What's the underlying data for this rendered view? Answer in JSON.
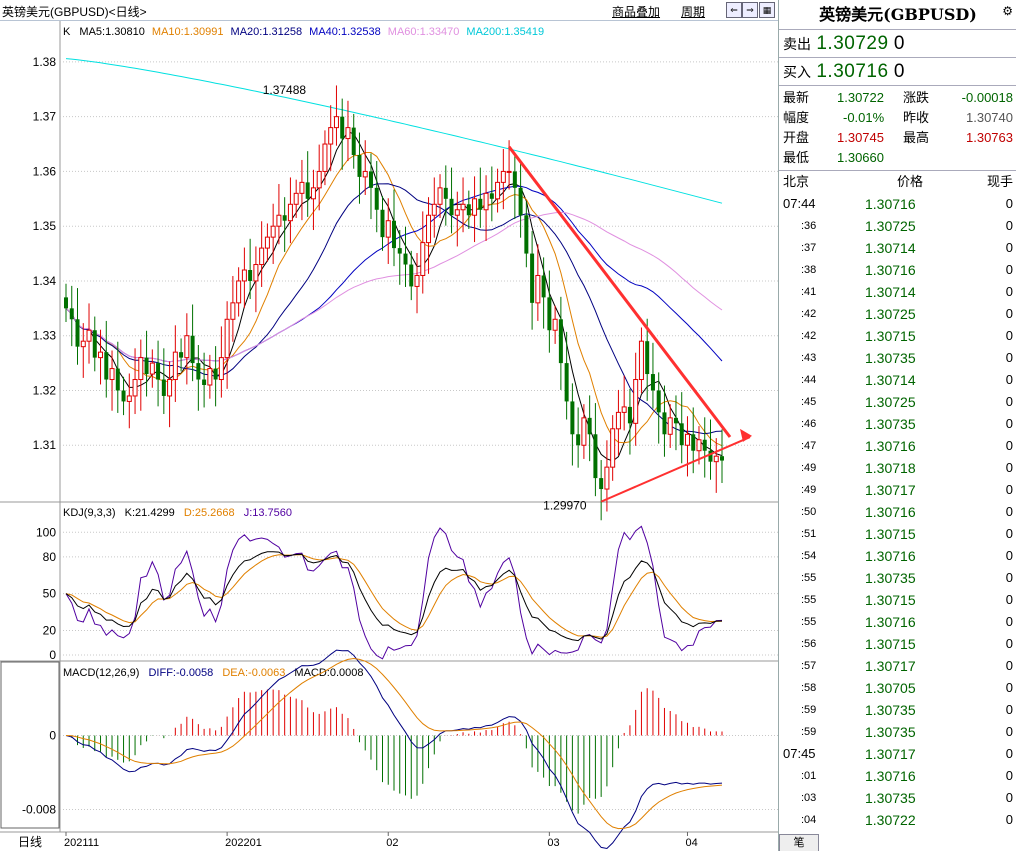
{
  "window": {
    "title": "英镑美元(GBPUSD)<日线>"
  },
  "toolbar": {
    "menu_overlay": "商品叠加",
    "menu_period": "周期",
    "btn_left": "⇐",
    "btn_right": "⇒",
    "btn_grid": "▦"
  },
  "main_chart": {
    "ma_legend": {
      "k": "K",
      "ma5": "MA5:1.30810",
      "ma10": "MA10:1.30991",
      "ma20": "MA20:1.31258",
      "ma40": "MA40:1.32538",
      "ma60": "MA60:1.33470",
      "ma200": "MA200:1.35419"
    },
    "y_ticks": [
      "1.38",
      "1.37",
      "1.36",
      "1.35",
      "1.34",
      "1.33",
      "1.32",
      "1.31"
    ],
    "annot_high": "1.37488",
    "annot_low": "1.29970"
  },
  "kdj": {
    "legend": "KDJ(9,3,3)",
    "k": "K:21.4299",
    "d": "D:25.2668",
    "j": "J:13.7560",
    "y_ticks": [
      "100",
      "80",
      "50",
      "20",
      "0"
    ]
  },
  "macd": {
    "legend": "MACD(12,26,9)",
    "diff": "DIFF:-0.0058",
    "dea": "DEA:-0.0063",
    "macd": "MACD:0.0008",
    "y_ticks": [
      "0",
      "-0.008"
    ]
  },
  "x_axis": {
    "label": "日线",
    "ticks": [
      "202111",
      "202201",
      "02",
      "03",
      "04"
    ]
  },
  "colors": {
    "ma5": "#000000",
    "ma10": "#e08000",
    "ma20": "#000080",
    "ma40": "#0000c0",
    "ma60": "#e090e0",
    "ma200": "#00e0e0",
    "up": "#e00000",
    "down": "#007000",
    "trend": "#ff3030"
  },
  "right_panel": {
    "title": "英镑美元(GBPUSD)",
    "gear": "⚙",
    "sell_label": "卖出",
    "sell_price": "1.30729",
    "sell_qty": "0",
    "buy_label": "买入",
    "buy_price": "1.30716",
    "buy_qty": "0",
    "stats": {
      "latest_label": "最新",
      "latest": "1.30722",
      "change_label": "涨跌",
      "change": "-0.00018",
      "pct_label": "幅度",
      "pct": "-0.01%",
      "prev_label": "昨收",
      "prev": "1.30740",
      "open_label": "开盘",
      "open": "1.30745",
      "high_label": "最高",
      "high": "1.30763",
      "low_label": "最低",
      "low": "1.30660"
    },
    "trades_head": {
      "time": "北京",
      "price": "价格",
      "vol": "现手"
    },
    "trades": [
      {
        "time": "07:44",
        "price": "1.30716",
        "vol": "0"
      },
      {
        "time": ":36",
        "price": "1.30725",
        "vol": "0"
      },
      {
        "time": ":37",
        "price": "1.30714",
        "vol": "0"
      },
      {
        "time": ":38",
        "price": "1.30716",
        "vol": "0"
      },
      {
        "time": ":41",
        "price": "1.30714",
        "vol": "0"
      },
      {
        "time": ":42",
        "price": "1.30725",
        "vol": "0"
      },
      {
        "time": ":42",
        "price": "1.30715",
        "vol": "0"
      },
      {
        "time": ":43",
        "price": "1.30735",
        "vol": "0"
      },
      {
        "time": ":44",
        "price": "1.30714",
        "vol": "0"
      },
      {
        "time": ":45",
        "price": "1.30725",
        "vol": "0"
      },
      {
        "time": ":46",
        "price": "1.30735",
        "vol": "0"
      },
      {
        "time": ":47",
        "price": "1.30716",
        "vol": "0"
      },
      {
        "time": ":49",
        "price": "1.30718",
        "vol": "0"
      },
      {
        "time": ":49",
        "price": "1.30717",
        "vol": "0"
      },
      {
        "time": ":50",
        "price": "1.30716",
        "vol": "0"
      },
      {
        "time": ":51",
        "price": "1.30715",
        "vol": "0"
      },
      {
        "time": ":54",
        "price": "1.30716",
        "vol": "0"
      },
      {
        "time": ":55",
        "price": "1.30735",
        "vol": "0"
      },
      {
        "time": ":55",
        "price": "1.30715",
        "vol": "0"
      },
      {
        "time": ":55",
        "price": "1.30716",
        "vol": "0"
      },
      {
        "time": ":56",
        "price": "1.30715",
        "vol": "0"
      },
      {
        "time": ":57",
        "price": "1.30717",
        "vol": "0"
      },
      {
        "time": ":58",
        "price": "1.30705",
        "vol": "0"
      },
      {
        "time": ":59",
        "price": "1.30735",
        "vol": "0"
      },
      {
        "time": ":59",
        "price": "1.30735",
        "vol": "0"
      },
      {
        "time": "07:45",
        "price": "1.30717",
        "vol": "0"
      },
      {
        "time": ":01",
        "price": "1.30716",
        "vol": "0"
      },
      {
        "time": ":03",
        "price": "1.30735",
        "vol": "0"
      },
      {
        "time": ":04",
        "price": "1.30722",
        "vol": "0"
      }
    ],
    "bottom_tab": "笔"
  },
  "chart_data": [
    {
      "type": "candlestick",
      "title": "英镑美元(GBPUSD)",
      "y_range": [
        1.3,
        1.384
      ],
      "series": [
        {
          "name": "MA5",
          "value": 1.3081
        },
        {
          "name": "MA10",
          "value": 1.30991
        },
        {
          "name": "MA20",
          "value": 1.31258
        },
        {
          "name": "MA40",
          "value": 1.32538
        },
        {
          "name": "MA60",
          "value": 1.3347
        },
        {
          "name": "MA200",
          "value": 1.35419
        }
      ],
      "annotations": [
        {
          "label": "1.37488",
          "value": 1.37488
        },
        {
          "label": "1.29970",
          "value": 1.2997
        }
      ],
      "close": [
        1.335,
        1.333,
        1.328,
        1.329,
        1.331,
        1.326,
        1.327,
        1.322,
        1.324,
        1.32,
        1.318,
        1.319,
        1.322,
        1.326,
        1.323,
        1.325,
        1.322,
        1.319,
        1.322,
        1.327,
        1.326,
        1.33,
        1.325,
        1.322,
        1.321,
        1.324,
        1.322,
        1.326,
        1.333,
        1.336,
        1.34,
        1.342,
        1.34,
        1.343,
        1.346,
        1.348,
        1.35,
        1.352,
        1.351,
        1.354,
        1.356,
        1.358,
        1.355,
        1.357,
        1.36,
        1.365,
        1.368,
        1.37,
        1.366,
        1.368,
        1.363,
        1.359,
        1.36,
        1.357,
        1.353,
        1.348,
        1.351,
        1.346,
        1.345,
        1.343,
        1.339,
        1.341,
        1.347,
        1.352,
        1.354,
        1.357,
        1.355,
        1.352,
        1.353,
        1.354,
        1.352,
        1.355,
        1.353,
        1.356,
        1.355,
        1.358,
        1.36,
        1.36,
        1.357,
        1.352,
        1.345,
        1.336,
        1.341,
        1.337,
        1.331,
        1.333,
        1.325,
        1.318,
        1.312,
        1.31,
        1.315,
        1.312,
        1.304,
        1.302,
        1.306,
        1.313,
        1.316,
        1.317,
        1.314,
        1.322,
        1.329,
        1.323,
        1.32,
        1.316,
        1.312,
        1.315,
        1.314,
        1.31,
        1.312,
        1.309,
        1.311,
        1.309,
        1.307,
        1.308,
        1.3072
      ],
      "kdj": {
        "K": 21.4299,
        "D": 25.2668,
        "J": 13.756,
        "y_range": [
          0,
          110
        ]
      },
      "macd": {
        "DIFF": -0.0058,
        "DEA": -0.0063,
        "MACD": 0.0008,
        "y_range": [
          -0.01,
          0.006
        ]
      }
    }
  ]
}
